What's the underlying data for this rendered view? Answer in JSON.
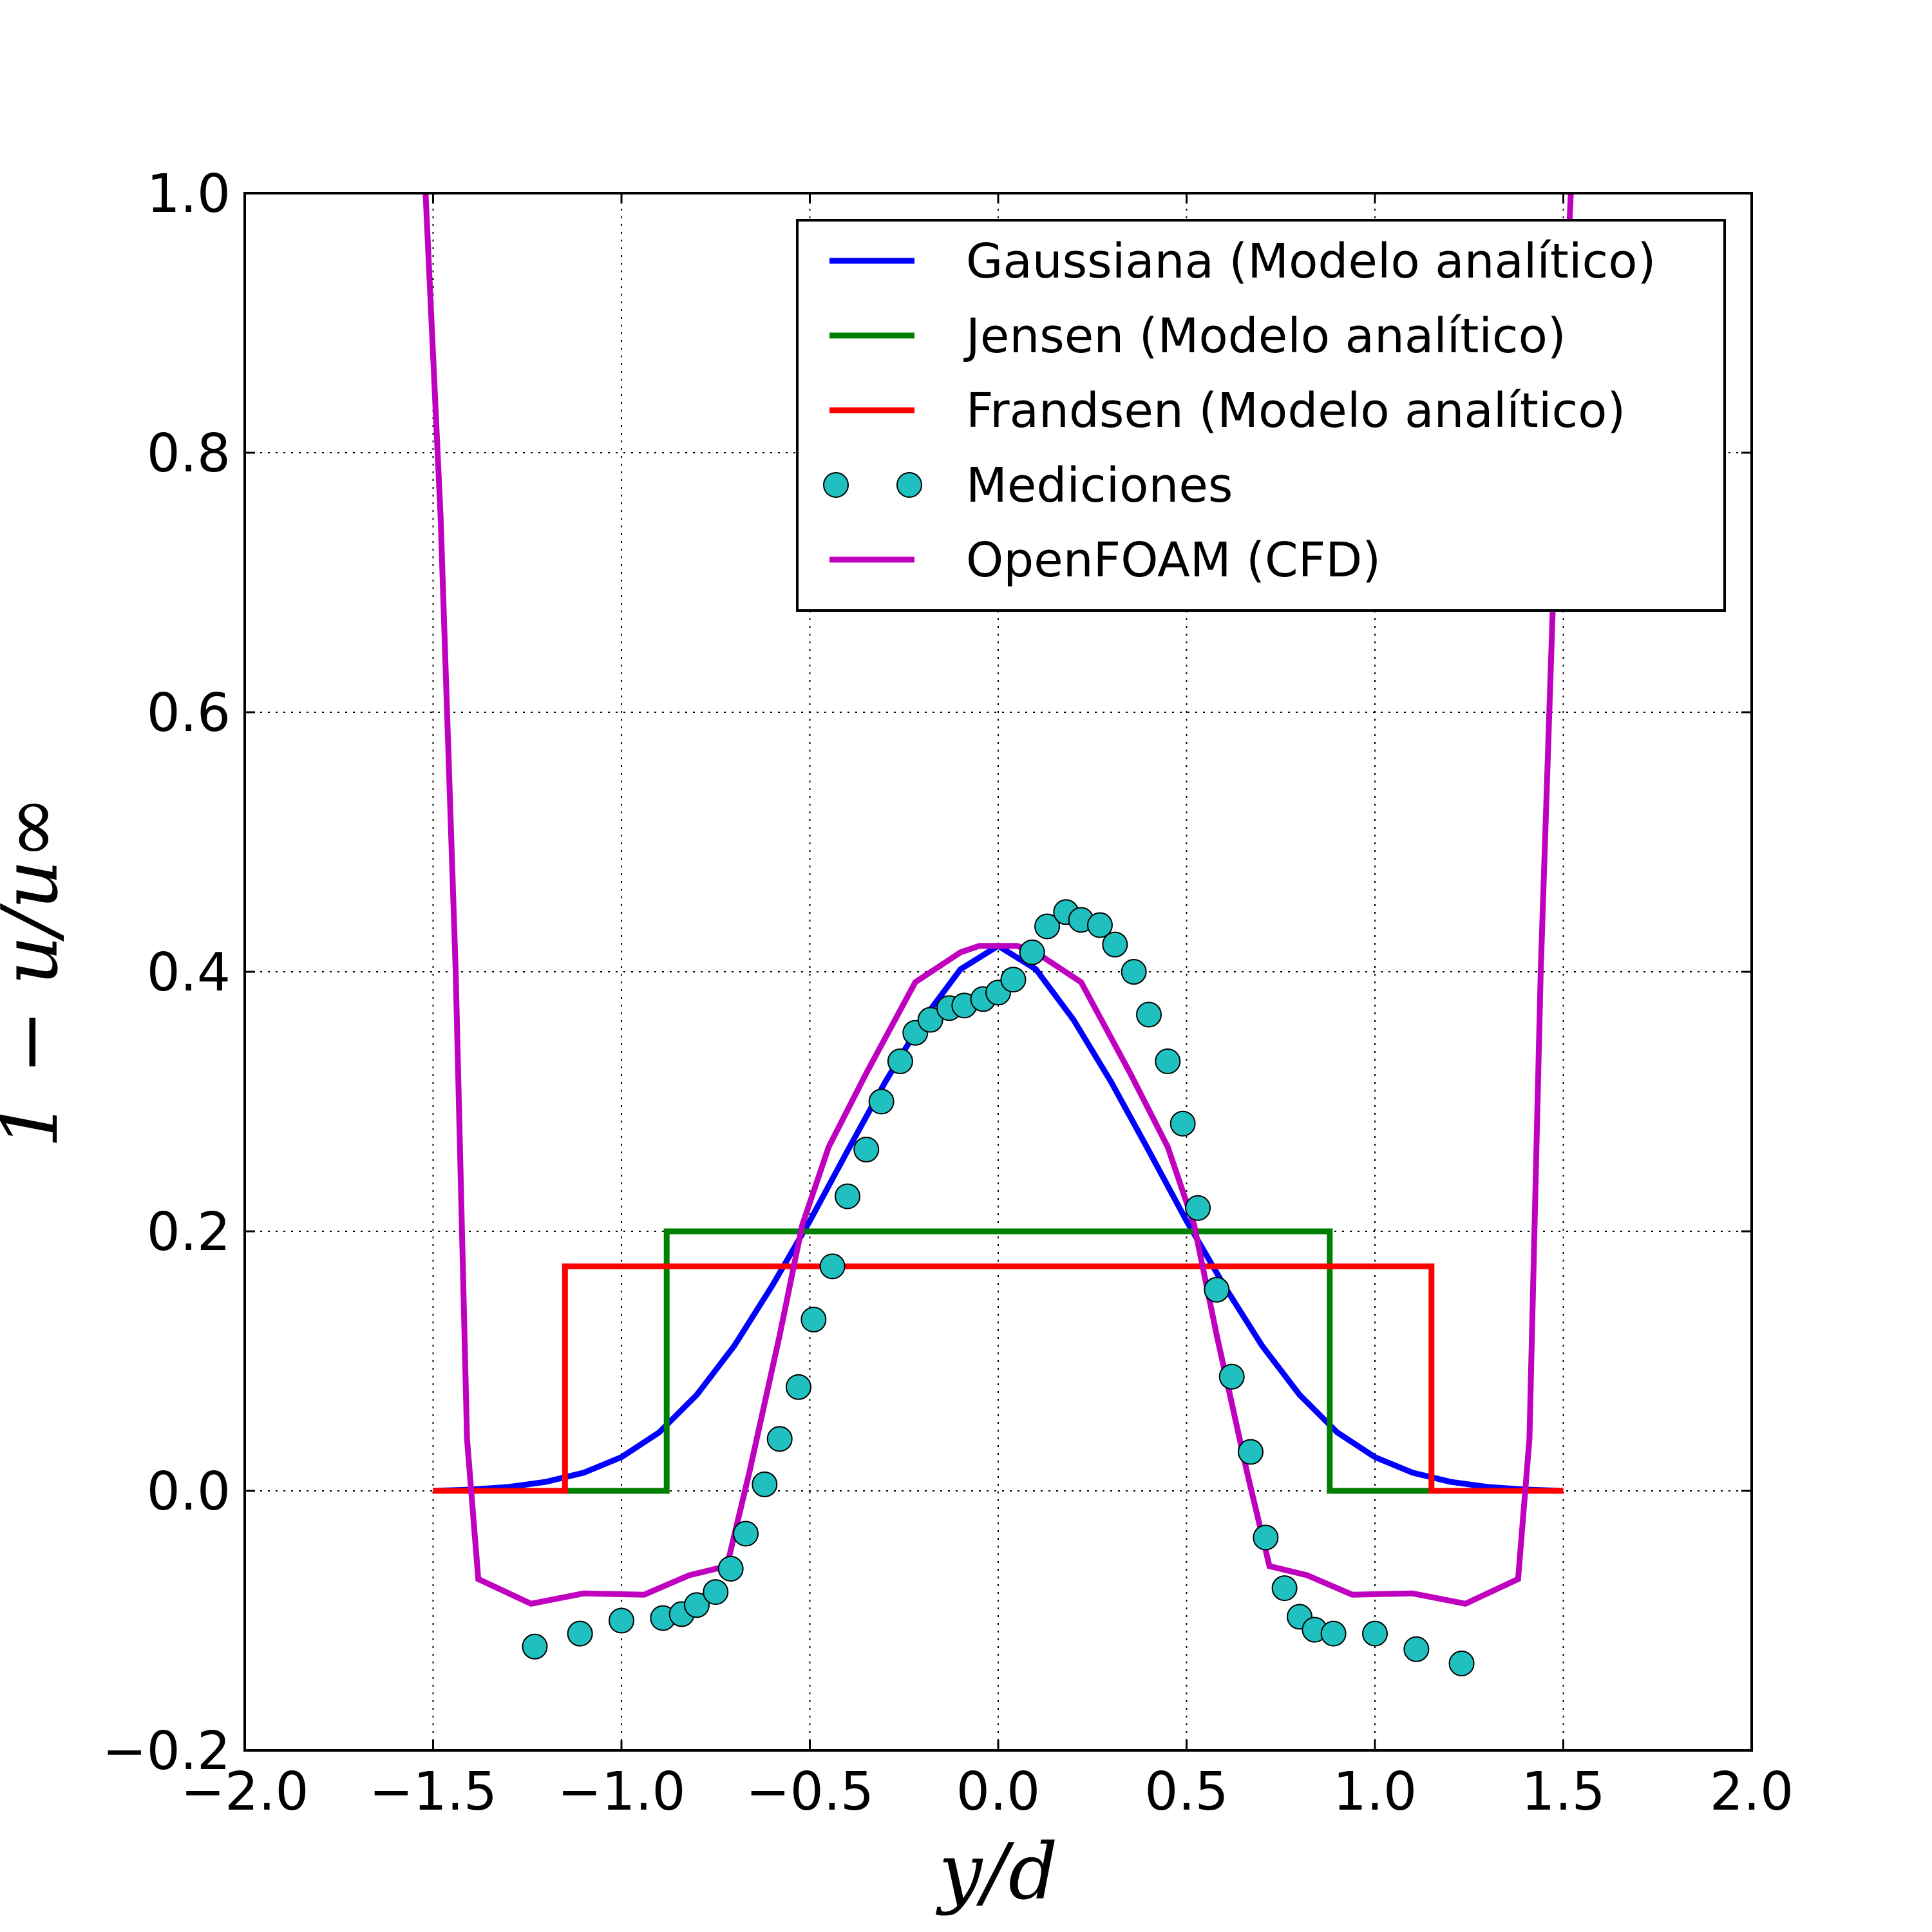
{
  "chart_data": {
    "type": "line",
    "xlabel": "y/d",
    "ylabel": "1 − u/u∞",
    "xlim": [
      -2.0,
      2.0
    ],
    "ylim": [
      -0.2,
      1.0
    ],
    "grid": true,
    "legend_position": "top-right",
    "x_ticks": [
      "−2.0",
      "−1.5",
      "−1.0",
      "−0.5",
      "0.0",
      "0.5",
      "1.0",
      "1.5",
      "2.0"
    ],
    "y_ticks": [
      "−0.2",
      "0.0",
      "0.2",
      "0.4",
      "0.6",
      "0.8",
      "1.0"
    ],
    "series": [
      {
        "name": "Gaussiana (Modelo analítico)",
        "color": "#0000ff",
        "style": "line",
        "x": [
          -1.5,
          -1.4,
          -1.3,
          -1.2,
          -1.1,
          -1.0,
          -0.9,
          -0.8,
          -0.7,
          -0.6,
          -0.5,
          -0.4,
          -0.3,
          -0.2,
          -0.1,
          0.0,
          0.1,
          0.2,
          0.3,
          0.4,
          0.5,
          0.6,
          0.7,
          0.8,
          0.9,
          1.0,
          1.1,
          1.2,
          1.3,
          1.4,
          1.5
        ],
        "y": [
          0.0,
          0.001,
          0.003,
          0.007,
          0.014,
          0.026,
          0.045,
          0.074,
          0.112,
          0.158,
          0.208,
          0.262,
          0.315,
          0.363,
          0.402,
          0.42,
          0.402,
          0.363,
          0.315,
          0.262,
          0.208,
          0.158,
          0.112,
          0.074,
          0.045,
          0.026,
          0.014,
          0.007,
          0.003,
          0.001,
          0.0
        ]
      },
      {
        "name": "Jensen (Modelo analítico)",
        "color": "#008000",
        "style": "line",
        "x": [
          -1.5,
          -0.88,
          -0.88,
          0.88,
          0.88,
          1.5
        ],
        "y": [
          0.0,
          0.0,
          0.2,
          0.2,
          0.0,
          0.0
        ]
      },
      {
        "name": "Frandsen (Modelo analítico)",
        "color": "#ff0000",
        "style": "line",
        "x": [
          -1.5,
          -1.15,
          -1.15,
          1.15,
          1.15,
          1.5
        ],
        "y": [
          0.0,
          0.0,
          0.173,
          0.173,
          0.0,
          0.0
        ]
      },
      {
        "name": "Mediciones",
        "color": "#20c0c0",
        "style": "markers",
        "x": [
          -1.23,
          -1.11,
          -1.0,
          -0.89,
          -0.84,
          -0.8,
          -0.75,
          -0.71,
          -0.67,
          -0.62,
          -0.58,
          -0.53,
          -0.49,
          -0.44,
          -0.4,
          -0.35,
          -0.31,
          -0.26,
          -0.22,
          -0.18,
          -0.13,
          -0.09,
          -0.04,
          0.0,
          0.04,
          0.09,
          0.13,
          0.18,
          0.22,
          0.27,
          0.31,
          0.36,
          0.4,
          0.45,
          0.49,
          0.53,
          0.58,
          0.62,
          0.67,
          0.71,
          0.76,
          0.8,
          0.84,
          0.89,
          1.0,
          1.11,
          1.23
        ],
        "y": [
          -0.12,
          -0.11,
          -0.1,
          -0.098,
          -0.095,
          -0.088,
          -0.078,
          -0.06,
          -0.033,
          0.005,
          0.04,
          0.08,
          0.132,
          0.173,
          0.227,
          0.263,
          0.3,
          0.331,
          0.353,
          0.363,
          0.372,
          0.374,
          0.379,
          0.384,
          0.394,
          0.415,
          0.435,
          0.446,
          0.44,
          0.436,
          0.421,
          0.4,
          0.367,
          0.331,
          0.283,
          0.218,
          0.155,
          0.088,
          0.03,
          -0.036,
          -0.075,
          -0.097,
          -0.107,
          -0.11,
          -0.11,
          -0.122,
          -0.133
        ]
      },
      {
        "name": "OpenFOAM (CFD)",
        "color": "#bf00bf",
        "style": "line",
        "x": [
          -1.52,
          -1.48,
          -1.44,
          -1.41,
          -1.38,
          -1.24,
          -1.1,
          -0.94,
          -0.82,
          -0.72,
          -0.66,
          -0.58,
          -0.52,
          -0.45,
          -0.35,
          -0.22,
          -0.1,
          -0.05,
          0.05,
          0.1,
          0.22,
          0.35,
          0.45,
          0.52,
          0.58,
          0.66,
          0.72,
          0.82,
          0.94,
          1.1,
          1.24,
          1.38,
          1.41,
          1.44,
          1.48,
          1.52
        ],
        "y": [
          1.0,
          0.75,
          0.4,
          0.04,
          -0.068,
          -0.087,
          -0.079,
          -0.08,
          -0.065,
          -0.058,
          0.015,
          0.12,
          0.205,
          0.265,
          0.322,
          0.392,
          0.415,
          0.42,
          0.42,
          0.415,
          0.392,
          0.322,
          0.265,
          0.205,
          0.12,
          0.015,
          -0.058,
          -0.065,
          -0.08,
          -0.079,
          -0.087,
          -0.068,
          0.04,
          0.4,
          0.75,
          1.0
        ]
      }
    ]
  }
}
